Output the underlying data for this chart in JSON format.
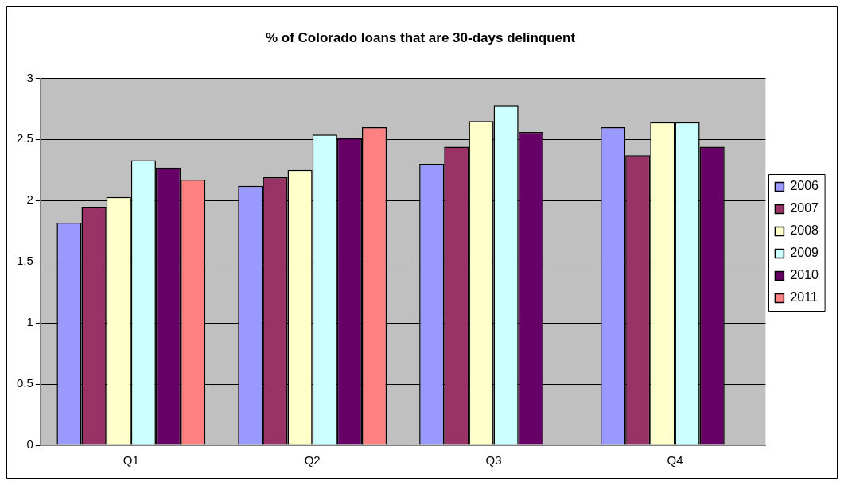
{
  "chart_data": {
    "type": "bar",
    "title": "% of Colorado loans that are 30-days delinquent",
    "categories": [
      "Q1",
      "Q2",
      "Q3",
      "Q4"
    ],
    "series": [
      {
        "name": "2006",
        "color": "#9999ff",
        "values": [
          1.82,
          2.12,
          2.3,
          2.6
        ]
      },
      {
        "name": "2007",
        "color": "#993366",
        "values": [
          1.95,
          2.19,
          2.44,
          2.37
        ]
      },
      {
        "name": "2008",
        "color": "#ffffcc",
        "values": [
          2.03,
          2.25,
          2.65,
          2.64
        ]
      },
      {
        "name": "2009",
        "color": "#ccffff",
        "values": [
          2.33,
          2.54,
          2.78,
          2.64
        ]
      },
      {
        "name": "2010",
        "color": "#660066",
        "values": [
          2.27,
          2.51,
          2.56,
          2.44
        ]
      },
      {
        "name": "2011",
        "color": "#ff8080",
        "values": [
          2.17,
          2.6,
          null,
          null
        ]
      }
    ],
    "ylim": [
      0,
      3
    ],
    "yticks": [
      0,
      0.5,
      1,
      1.5,
      2,
      2.5,
      3
    ],
    "grid": "y",
    "legend": "right"
  }
}
